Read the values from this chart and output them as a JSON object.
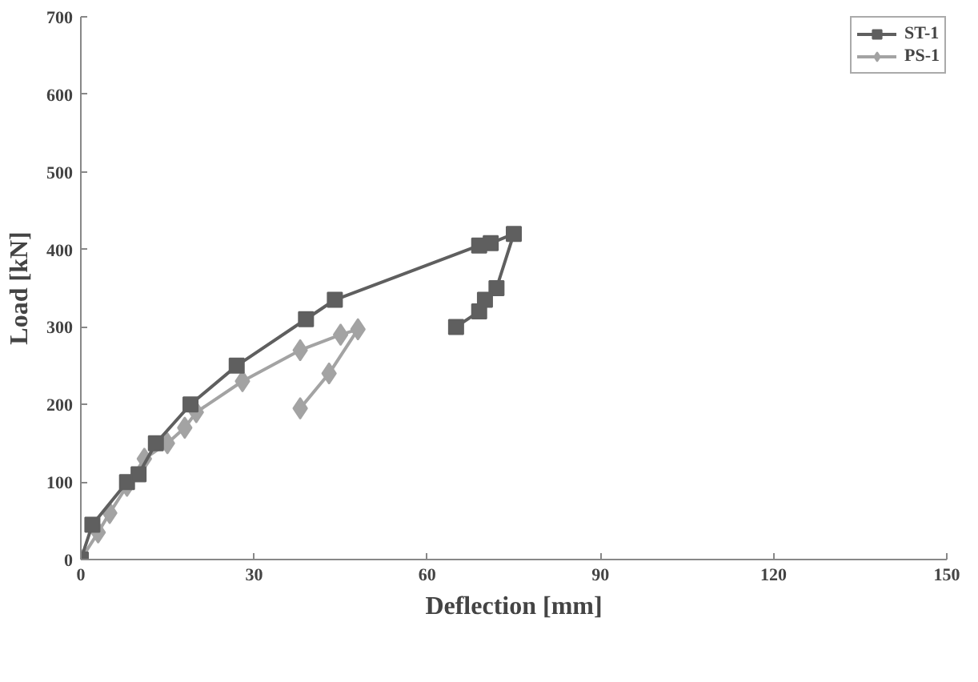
{
  "chart_data": {
    "type": "line",
    "xlabel": "Deflection [mm]",
    "ylabel": "Load [kN]",
    "xlim": [
      0,
      150
    ],
    "ylim": [
      0,
      700
    ],
    "xticks": [
      0,
      30,
      60,
      90,
      120,
      150
    ],
    "yticks": [
      0,
      100,
      200,
      300,
      400,
      500,
      600,
      700
    ],
    "grid": false,
    "legend": "top right",
    "series": [
      {
        "name": "ST-1",
        "color": "#5f5f5f",
        "marker": "square",
        "x": [
          0,
          2,
          8,
          10,
          13,
          19,
          27,
          39,
          44,
          69,
          71,
          75,
          72,
          70,
          69,
          65
        ],
        "values": [
          0,
          45,
          100,
          110,
          150,
          200,
          250,
          310,
          335,
          405,
          408,
          420,
          350,
          335,
          320,
          300
        ]
      },
      {
        "name": "PS-1",
        "color": "#a3a3a3",
        "marker": "diamond",
        "x": [
          0,
          3,
          5,
          8,
          11,
          15,
          18,
          20,
          28,
          38,
          45,
          48,
          43,
          38
        ],
        "values": [
          0,
          35,
          60,
          95,
          130,
          150,
          170,
          190,
          230,
          270,
          290,
          297,
          240,
          195
        ]
      }
    ]
  }
}
